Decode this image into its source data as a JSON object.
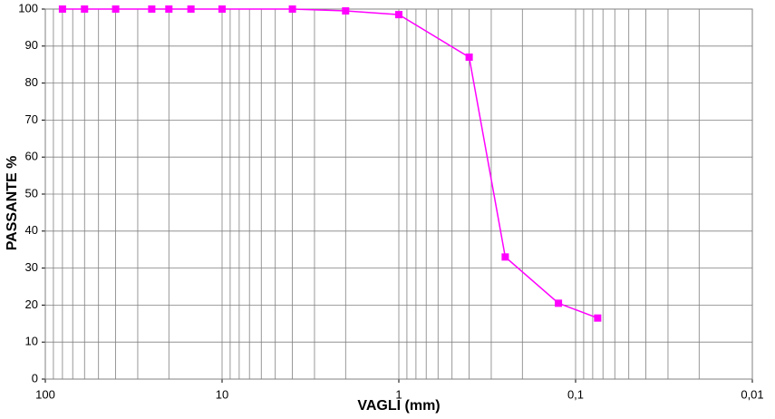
{
  "chart_data": {
    "type": "line",
    "x_label": "VAGLI (mm)",
    "y_label": "PASSANTE %",
    "x": [
      80,
      60,
      40,
      25,
      20,
      15,
      10,
      4,
      2,
      1,
      0.4,
      0.25,
      0.125,
      0.075
    ],
    "series": [
      {
        "color": "#ff00ff",
        "values": [
          100,
          100,
          100,
          100,
          100,
          100,
          100,
          100,
          99.5,
          98.5,
          87,
          33,
          20.5,
          16.5
        ]
      }
    ],
    "xlim": [
      100,
      0.01
    ],
    "xscale": "log",
    "xticks": [
      100,
      10,
      1,
      {
        "value": 0.1,
        "label": "0,1"
      },
      {
        "value": 0.01,
        "label": "0,01"
      }
    ],
    "ylim": [
      0,
      100
    ],
    "yticks": [
      0,
      10,
      20,
      30,
      40,
      50,
      60,
      70,
      80,
      90,
      100
    ],
    "grid": true,
    "minor_grid": true
  }
}
